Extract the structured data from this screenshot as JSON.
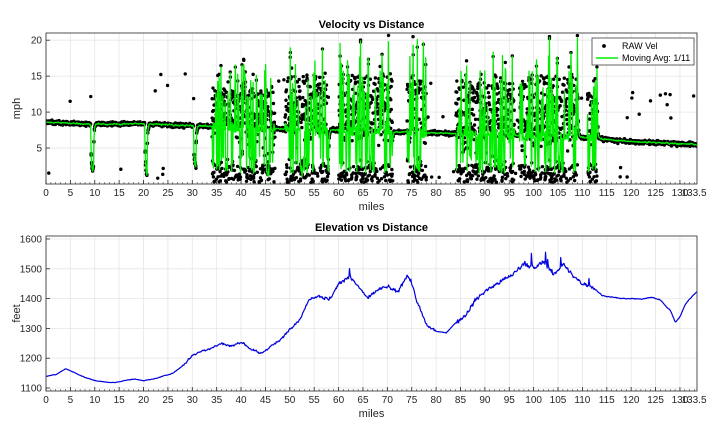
{
  "chart_data": [
    {
      "type": "scatter+line",
      "title": "Velocity vs Distance",
      "xlabel": "miles",
      "ylabel": "mph",
      "xlim": [
        0,
        133.5
      ],
      "ylim": [
        0,
        21
      ],
      "xticks": [
        0,
        5,
        10,
        15,
        20,
        25,
        30,
        35,
        40,
        45,
        50,
        55,
        60,
        65,
        70,
        75,
        80,
        85,
        90,
        95,
        100,
        105,
        110,
        115,
        120,
        125,
        130
      ],
      "xtick_labels": [
        "0",
        "5",
        "10",
        "15",
        "20",
        "25",
        "30",
        "35",
        "40",
        "45",
        "50",
        "55",
        "60",
        "65",
        "70",
        "75",
        "80",
        "85",
        "90",
        "95",
        "100",
        "105",
        "110",
        "115",
        "120",
        "125",
        "130"
      ],
      "xtick_end_label": "133.5",
      "yticks": [
        5,
        10,
        15,
        20
      ],
      "ytick_labels": [
        "5",
        "10",
        "15",
        "20"
      ],
      "grid": true,
      "legend_location": "top-right",
      "series": [
        {
          "name": "RAW Vel",
          "style": "dots",
          "color": "#000000"
        },
        {
          "name": "Moving Avg: 1/11",
          "style": "line",
          "color": "#00ee00"
        }
      ],
      "baseline_profile": [
        [
          0,
          8.6
        ],
        [
          10,
          8.3
        ],
        [
          20,
          8.4
        ],
        [
          30,
          8.1
        ],
        [
          40,
          7.9
        ],
        [
          50,
          7.6
        ],
        [
          60,
          7.5
        ],
        [
          70,
          7.3
        ],
        [
          80,
          7.1
        ],
        [
          90,
          6.9
        ],
        [
          100,
          6.7
        ],
        [
          110,
          6.5
        ],
        [
          115,
          6.2
        ],
        [
          120,
          5.9
        ],
        [
          133.5,
          5.5
        ]
      ],
      "burst_regions": [
        {
          "from": 34,
          "to": 47,
          "peak": 17
        },
        {
          "from": 49,
          "to": 58,
          "peak": 20
        },
        {
          "from": 60,
          "to": 71,
          "peak": 20
        },
        {
          "from": 74,
          "to": 78,
          "peak": 20.5
        },
        {
          "from": 84,
          "to": 96,
          "peak": 19
        },
        {
          "from": 97,
          "to": 109,
          "peak": 20.5
        },
        {
          "from": 111,
          "to": 113,
          "peak": 17
        }
      ],
      "dips": [
        9.5,
        20.5,
        30.5,
        37,
        45.5,
        52.5
      ]
    },
    {
      "type": "line",
      "title": "Elevation vs Distance",
      "xlabel": "miles",
      "ylabel": "feet",
      "xlim": [
        0,
        133.5
      ],
      "ylim": [
        1090,
        1610
      ],
      "xticks": [
        0,
        5,
        10,
        15,
        20,
        25,
        30,
        35,
        40,
        45,
        50,
        55,
        60,
        65,
        70,
        75,
        80,
        85,
        90,
        95,
        100,
        105,
        110,
        115,
        120,
        125,
        130
      ],
      "xtick_labels": [
        "0",
        "5",
        "10",
        "15",
        "20",
        "25",
        "30",
        "35",
        "40",
        "45",
        "50",
        "55",
        "60",
        "65",
        "70",
        "75",
        "80",
        "85",
        "90",
        "95",
        "100",
        "105",
        "110",
        "115",
        "120",
        "125",
        "130"
      ],
      "xtick_end_label": "133.5",
      "yticks": [
        1100,
        1200,
        1300,
        1400,
        1500,
        1600
      ],
      "ytick_labels": [
        "1100",
        "1200",
        "1300",
        "1400",
        "1500",
        "1600"
      ],
      "grid": true,
      "color": "#0000dd",
      "profile": [
        [
          0,
          1140
        ],
        [
          2,
          1145
        ],
        [
          4,
          1165
        ],
        [
          6,
          1150
        ],
        [
          8,
          1135
        ],
        [
          10,
          1125
        ],
        [
          12,
          1120
        ],
        [
          14,
          1118
        ],
        [
          16,
          1125
        ],
        [
          18,
          1130
        ],
        [
          20,
          1125
        ],
        [
          22,
          1130
        ],
        [
          24,
          1140
        ],
        [
          26,
          1150
        ],
        [
          28,
          1175
        ],
        [
          30,
          1210
        ],
        [
          32,
          1225
        ],
        [
          34,
          1235
        ],
        [
          36,
          1250
        ],
        [
          38,
          1240
        ],
        [
          40,
          1255
        ],
        [
          42,
          1230
        ],
        [
          44,
          1215
        ],
        [
          46,
          1240
        ],
        [
          48,
          1260
        ],
        [
          50,
          1300
        ],
        [
          52,
          1330
        ],
        [
          54,
          1400
        ],
        [
          56,
          1410
        ],
        [
          58,
          1395
        ],
        [
          60,
          1450
        ],
        [
          62,
          1475
        ],
        [
          64,
          1440
        ],
        [
          66,
          1400
        ],
        [
          68,
          1430
        ],
        [
          70,
          1440
        ],
        [
          72,
          1420
        ],
        [
          74,
          1480
        ],
        [
          75,
          1450
        ],
        [
          76,
          1390
        ],
        [
          78,
          1310
        ],
        [
          80,
          1290
        ],
        [
          82,
          1285
        ],
        [
          84,
          1320
        ],
        [
          86,
          1345
        ],
        [
          88,
          1395
        ],
        [
          90,
          1425
        ],
        [
          92,
          1445
        ],
        [
          94,
          1465
        ],
        [
          96,
          1485
        ],
        [
          98,
          1520
        ],
        [
          100,
          1500
        ],
        [
          102,
          1525
        ],
        [
          104,
          1480
        ],
        [
          106,
          1515
        ],
        [
          108,
          1475
        ],
        [
          110,
          1450
        ],
        [
          112,
          1440
        ],
        [
          114,
          1410
        ],
        [
          116,
          1405
        ],
        [
          118,
          1400
        ],
        [
          120,
          1400
        ],
        [
          122,
          1398
        ],
        [
          124,
          1405
        ],
        [
          126,
          1395
        ],
        [
          127,
          1375
        ],
        [
          128,
          1360
        ],
        [
          129,
          1320
        ],
        [
          130,
          1340
        ],
        [
          131,
          1380
        ],
        [
          132,
          1400
        ],
        [
          133.5,
          1425
        ]
      ]
    }
  ]
}
